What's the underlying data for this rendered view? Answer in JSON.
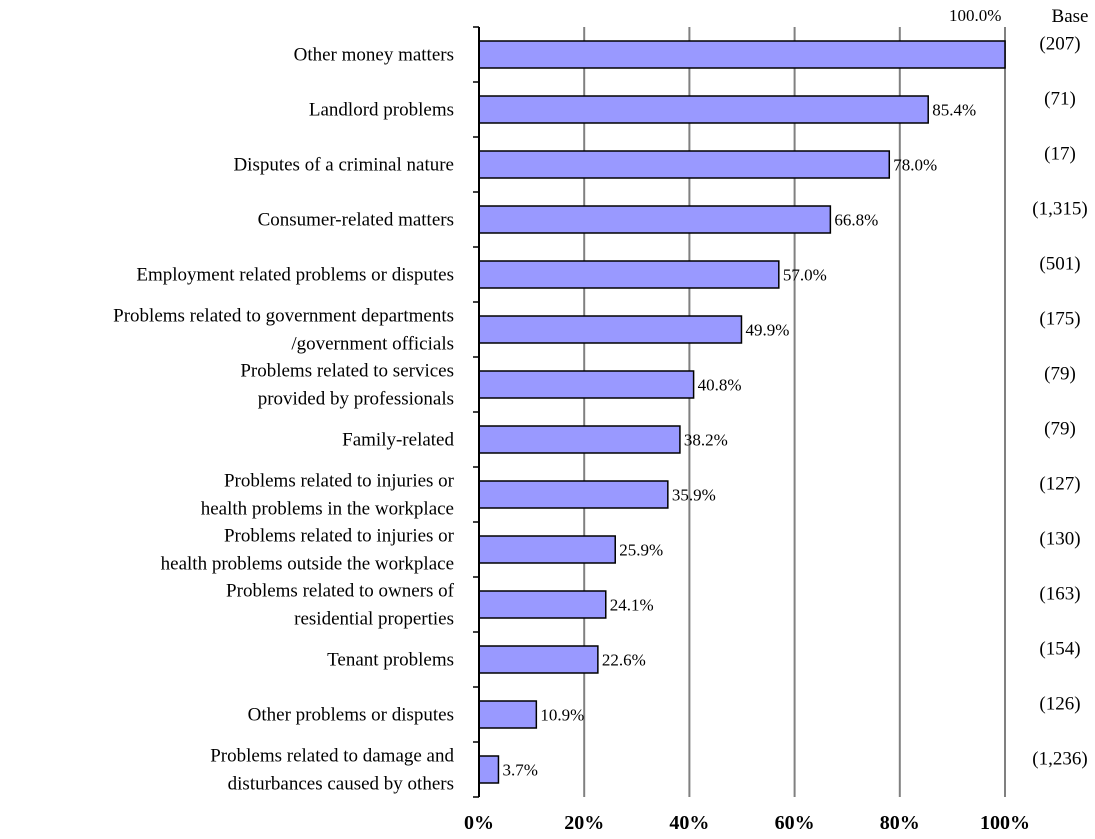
{
  "chart_data": {
    "type": "bar",
    "orientation": "horizontal",
    "categories": [
      [
        "Other money matters"
      ],
      [
        "Landlord problems"
      ],
      [
        "Disputes of a criminal nature"
      ],
      [
        "Consumer-related matters"
      ],
      [
        "Employment related problems or disputes"
      ],
      [
        "Problems related to government departments",
        "/government officials"
      ],
      [
        "Problems related to services",
        "provided by professionals"
      ],
      [
        "Family-related"
      ],
      [
        "Problems related to injuries or",
        "health problems in the workplace"
      ],
      [
        "Problems related to injuries or",
        "health problems outside the workplace"
      ],
      [
        "Problems related to owners of",
        "residential properties"
      ],
      [
        "Tenant problems"
      ],
      [
        "Other problems or disputes"
      ],
      [
        "Problems related to damage and",
        "disturbances caused by others"
      ]
    ],
    "values": [
      100.0,
      85.4,
      78.0,
      66.8,
      57.0,
      49.9,
      40.8,
      38.2,
      35.9,
      25.9,
      24.1,
      22.6,
      10.9,
      3.7
    ],
    "value_labels": [
      "100.0%",
      "85.4%",
      "78.0%",
      "66.8%",
      "57.0%",
      "49.9%",
      "40.8%",
      "38.2%",
      "35.9%",
      "25.9%",
      "24.1%",
      "22.6%",
      "10.9%",
      "3.7%"
    ],
    "base_header": "Base",
    "bases": [
      "(207)",
      "(71)",
      "(17)",
      "(1,315)",
      "(501)",
      "(175)",
      "(79)",
      "(79)",
      "(127)",
      "(130)",
      "(163)",
      "(154)",
      "(126)",
      "(1,236)"
    ],
    "x_ticks": [
      "0%",
      "20%",
      "40%",
      "60%",
      "80%",
      "100%"
    ],
    "xlim": [
      0,
      100
    ],
    "grid": true,
    "bar_color": "#9999ff"
  }
}
